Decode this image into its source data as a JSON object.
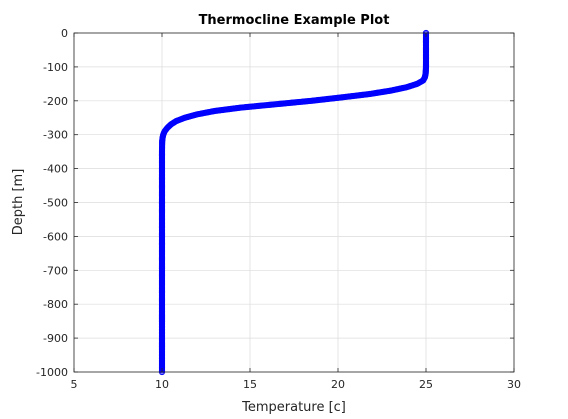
{
  "chart_data": {
    "type": "line",
    "title": "Thermocline Example Plot",
    "xlabel": "Temperature [c]",
    "ylabel": "Depth [m]",
    "xlim": [
      5,
      30
    ],
    "ylim": [
      -1000,
      0
    ],
    "xticks": [
      "5",
      "10",
      "15",
      "20",
      "25",
      "30"
    ],
    "yticks": [
      "0",
      "-100",
      "-200",
      "-300",
      "-400",
      "-500",
      "-600",
      "-700",
      "-800",
      "-900",
      "-1000"
    ],
    "grid": true,
    "legend": "none",
    "series": [
      {
        "color": "#0000ff",
        "marker": "circle",
        "x": [
          25,
          25,
          25,
          24.99,
          24.98,
          24.94,
          24.84,
          24.5,
          23.9,
          23.0,
          21.8,
          20.2,
          18.5,
          16.5,
          14.5,
          13.0,
          12.0,
          11.3,
          10.8,
          10.5,
          10.3,
          10.15,
          10.07,
          10.03,
          10.01,
          10,
          10,
          10,
          10,
          10,
          10,
          10,
          10,
          10,
          10,
          10,
          10
        ],
        "y": [
          0,
          -50,
          -100,
          -110,
          -120,
          -130,
          -140,
          -150,
          -160,
          -170,
          -180,
          -190,
          -200,
          -210,
          -220,
          -230,
          -240,
          -250,
          -260,
          -270,
          -280,
          -290,
          -300,
          -310,
          -320,
          -350,
          -400,
          -450,
          -500,
          -550,
          -600,
          -650,
          -700,
          -750,
          -800,
          -900,
          -1000
        ]
      }
    ]
  }
}
